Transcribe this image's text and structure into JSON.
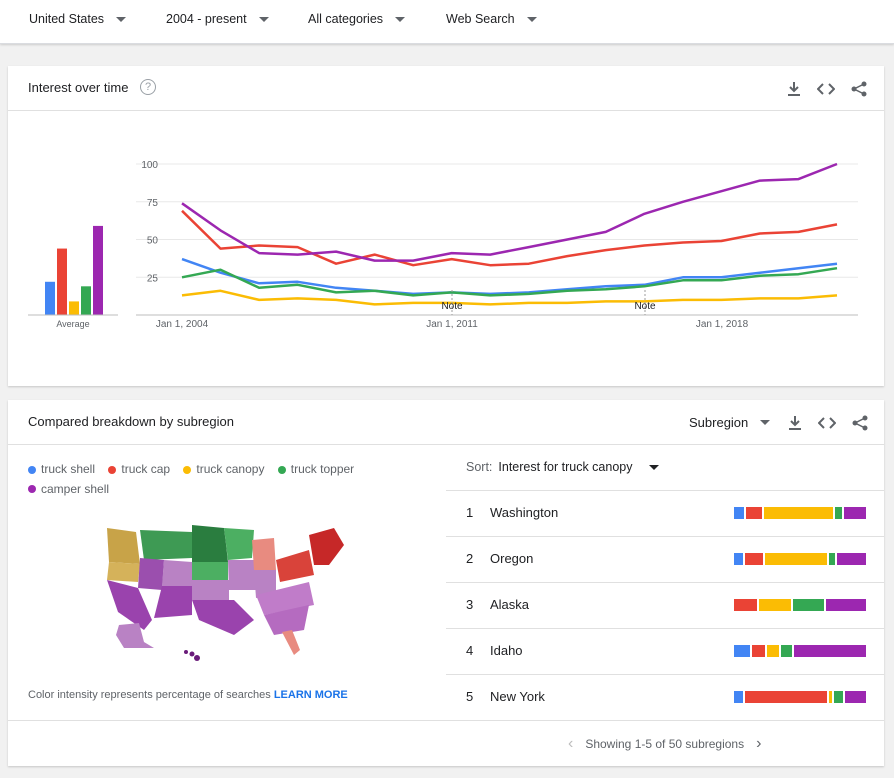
{
  "filters": {
    "region": "United States",
    "time": "2004 - present",
    "category": "All categories",
    "search_type": "Web Search"
  },
  "interest_card": {
    "title": "Interest over time",
    "y_ticks": [
      "100",
      "75",
      "50",
      "25"
    ],
    "x_ticks": [
      "Jan 1, 2004",
      "Jan 1, 2011",
      "Jan 1, 2018"
    ],
    "note_labels": [
      "Note",
      "Note"
    ],
    "average_label": "Average"
  },
  "chart_data": {
    "type": "line",
    "x": [
      2004,
      2005,
      2006,
      2007,
      2008,
      2009,
      2010,
      2011,
      2012,
      2013,
      2014,
      2015,
      2016,
      2017,
      2018,
      2019,
      2020,
      2021
    ],
    "ylim": [
      0,
      100
    ],
    "series": [
      {
        "name": "truck shell",
        "color": "#4285f4",
        "values": [
          37,
          28,
          21,
          22,
          18,
          16,
          14,
          15,
          14,
          15,
          17,
          19,
          20,
          25,
          25,
          28,
          31,
          34
        ],
        "average": 22
      },
      {
        "name": "truck cap",
        "color": "#ea4335",
        "values": [
          69,
          44,
          46,
          45,
          34,
          40,
          33,
          37,
          33,
          34,
          39,
          43,
          46,
          48,
          49,
          54,
          55,
          60
        ],
        "average": 44
      },
      {
        "name": "truck canopy",
        "color": "#fbbc04",
        "values": [
          13,
          16,
          10,
          11,
          10,
          7,
          8,
          8,
          7,
          8,
          8,
          9,
          9,
          10,
          10,
          11,
          11,
          13
        ],
        "average": 9
      },
      {
        "name": "truck topper",
        "color": "#34a853",
        "values": [
          25,
          30,
          18,
          20,
          15,
          16,
          13,
          15,
          13,
          14,
          16,
          17,
          19,
          23,
          23,
          26,
          27,
          31
        ],
        "average": 19
      },
      {
        "name": "camper shell",
        "color": "#9c27b0",
        "values": [
          74,
          56,
          41,
          40,
          42,
          36,
          36,
          41,
          40,
          45,
          50,
          55,
          67,
          75,
          82,
          89,
          90,
          100
        ],
        "average": 59
      }
    ]
  },
  "breakdown_card": {
    "title": "Compared breakdown by subregion",
    "resolution": "Subregion",
    "legend": [
      {
        "label": "truck shell",
        "color": "#4285f4"
      },
      {
        "label": "truck cap",
        "color": "#ea4335"
      },
      {
        "label": "truck canopy",
        "color": "#fbbc04"
      },
      {
        "label": "truck topper",
        "color": "#34a853"
      },
      {
        "label": "camper shell",
        "color": "#9c27b0"
      }
    ],
    "sort_prefix": "Sort:",
    "sort_value": "Interest for truck canopy",
    "rows": [
      {
        "rank": "1",
        "name": "Washington",
        "shares": [
          8,
          13,
          56,
          5,
          18
        ]
      },
      {
        "rank": "2",
        "name": "Oregon",
        "shares": [
          7,
          15,
          50,
          5,
          23
        ]
      },
      {
        "rank": "3",
        "name": "Alaska",
        "shares": [
          0,
          18,
          26,
          24,
          32
        ]
      },
      {
        "rank": "4",
        "name": "Idaho",
        "shares": [
          13,
          10,
          10,
          9,
          58
        ]
      },
      {
        "rank": "5",
        "name": "New York",
        "shares": [
          7,
          66,
          3,
          7,
          17
        ]
      }
    ],
    "footnote_text": "Color intensity represents percentage of searches",
    "learn_more": "LEARN MORE",
    "paging_text": "Showing 1-5 of 50 subregions"
  }
}
